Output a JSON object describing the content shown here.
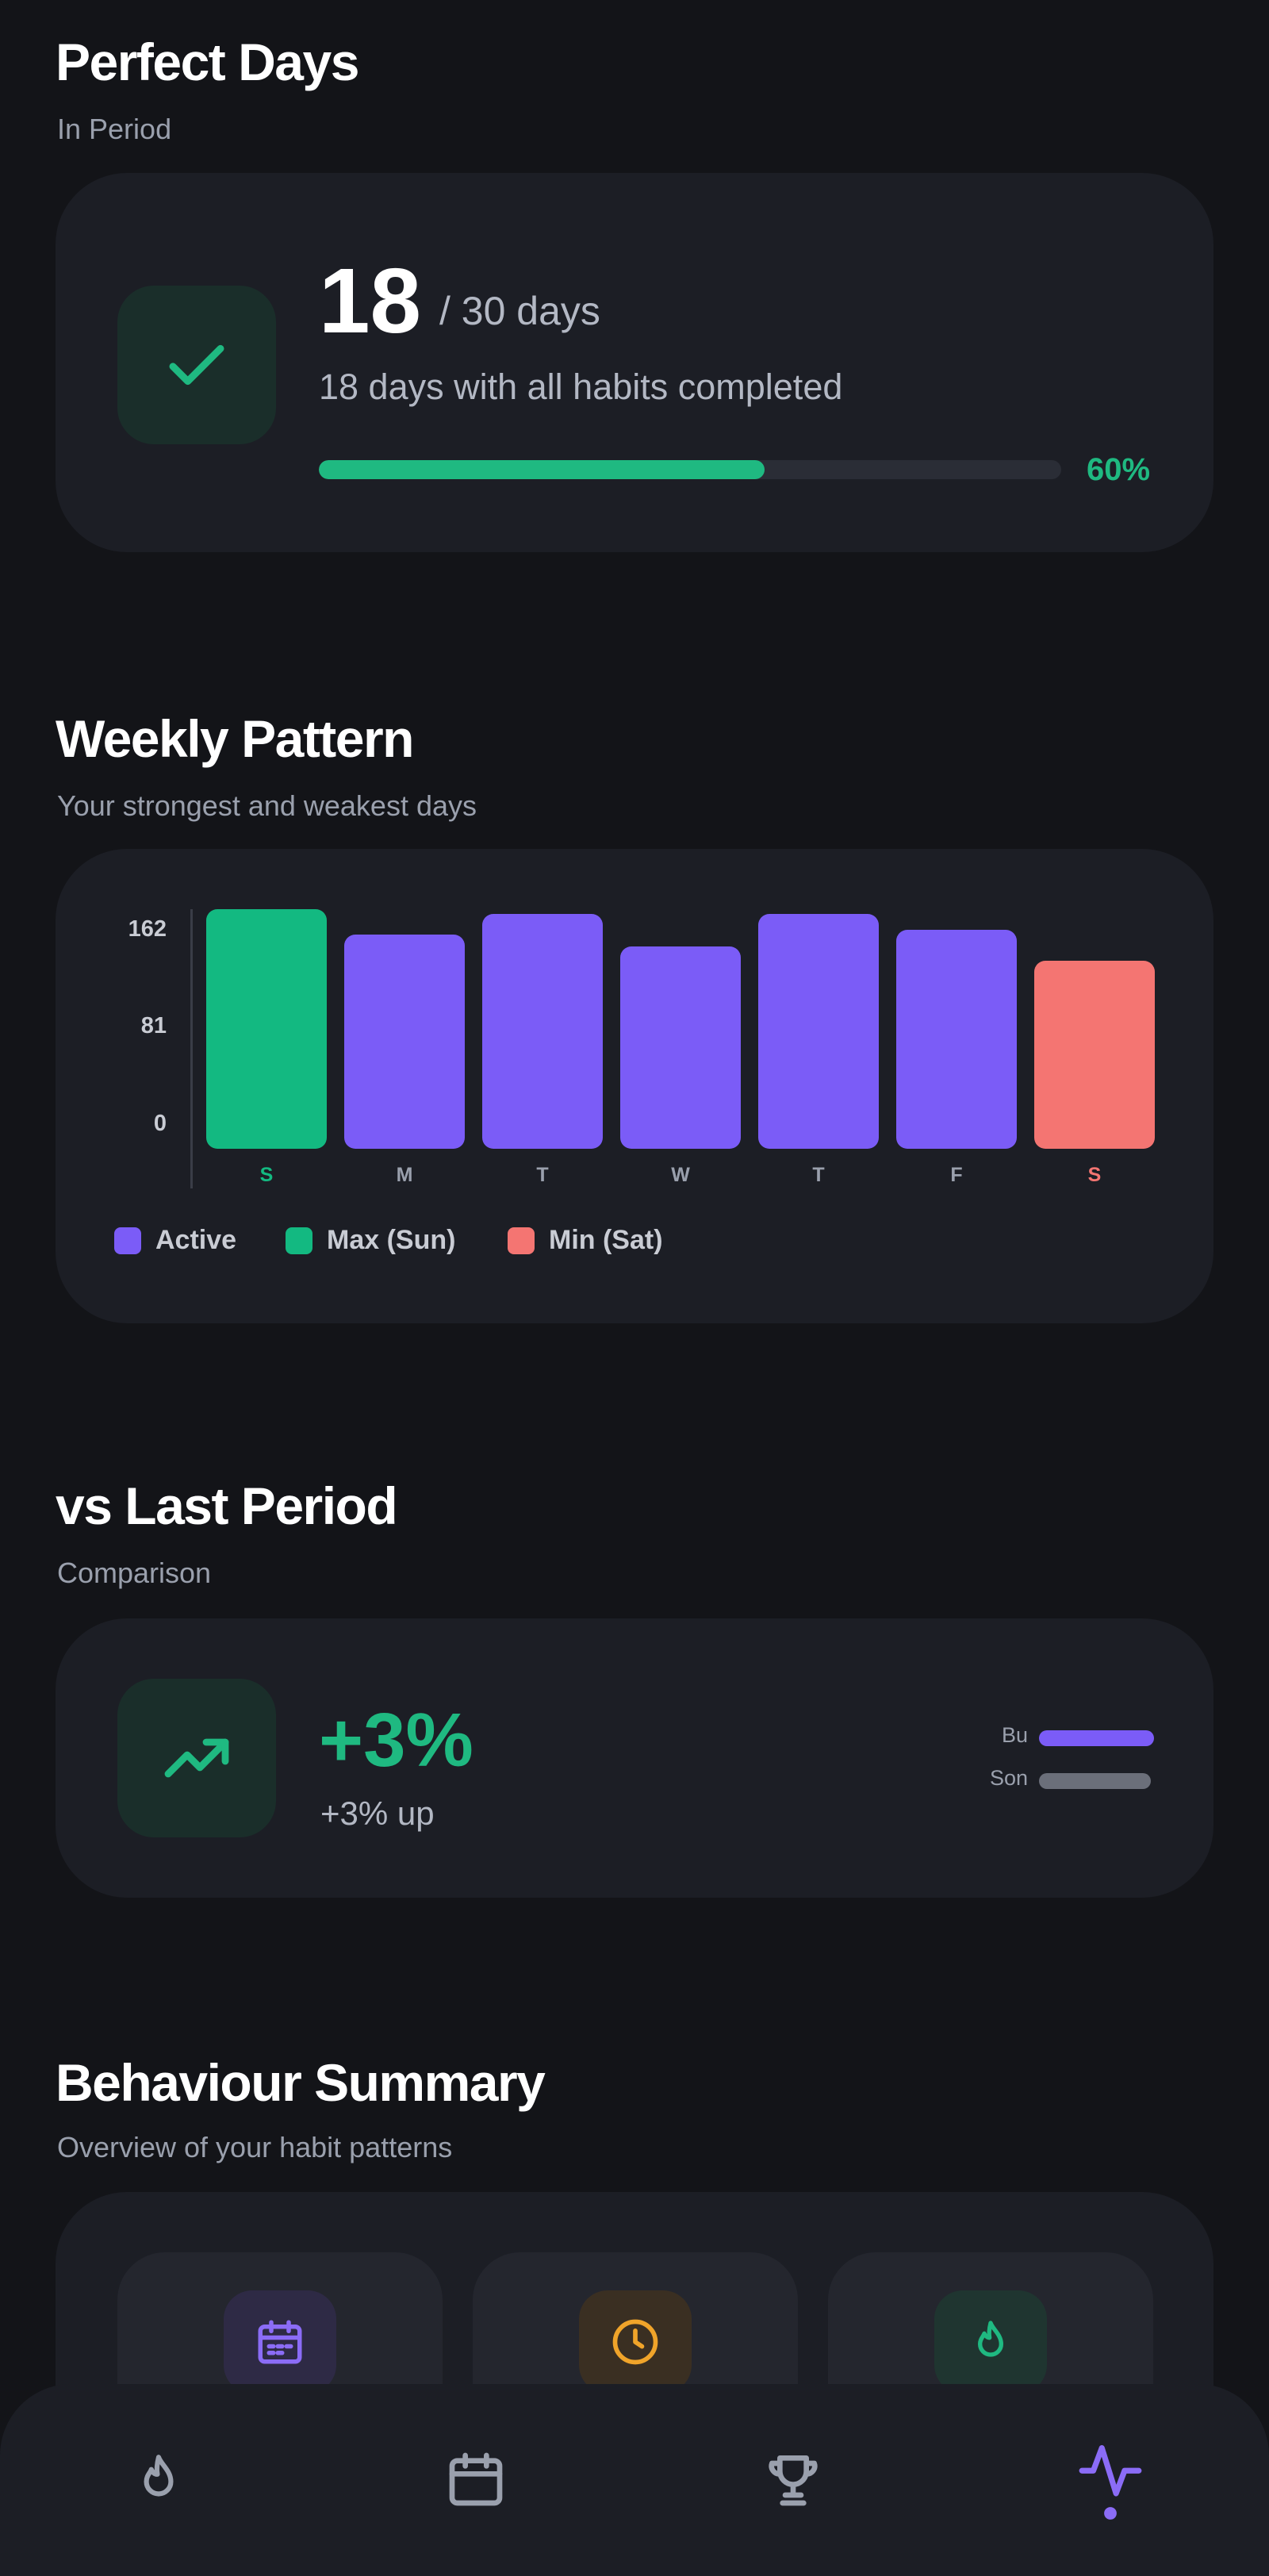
{
  "perfect_days": {
    "title": "Perfect Days",
    "subtitle": "In Period",
    "icon": "check-icon",
    "count": "18",
    "total": "/ 30 days",
    "description": "18 days with all habits completed",
    "progress_fraction": 0.6,
    "percent_label": "60%"
  },
  "weekly_pattern": {
    "title": "Weekly Pattern",
    "subtitle": "Your strongest and weakest days",
    "legend": [
      {
        "label": "Active",
        "color": "#7b5cf7"
      },
      {
        "label": "Max (Sun)",
        "color": "#13b981"
      },
      {
        "label": "Min (Sat)",
        "color": "#f47572"
      }
    ]
  },
  "chart_data": {
    "type": "bar",
    "categories": [
      "S",
      "M",
      "T",
      "W",
      "T",
      "F",
      "S"
    ],
    "values": [
      162,
      145,
      159,
      137,
      159,
      148,
      127
    ],
    "bar_colors": [
      "#13b981",
      "#7b5cf7",
      "#7b5cf7",
      "#7b5cf7",
      "#7b5cf7",
      "#7b5cf7",
      "#f47572"
    ],
    "label_colors": [
      "#13b981",
      "#9aa0ad",
      "#9aa0ad",
      "#9aa0ad",
      "#9aa0ad",
      "#9aa0ad",
      "#f47572"
    ],
    "yticks": [
      "162",
      "81",
      "0"
    ],
    "ylim": [
      0,
      162
    ],
    "title": "",
    "xlabel": "",
    "ylabel": "",
    "grid": false,
    "legend_position": "bottom-left"
  },
  "comparison": {
    "title": "vs Last Period",
    "subtitle": "Comparison",
    "icon": "trending-up-icon",
    "delta": "+3%",
    "delta_sub": "+3% up",
    "bars": [
      {
        "label": "Bu",
        "value": 1.0,
        "color": "#7b5cf7"
      },
      {
        "label": "Son",
        "value": 0.97,
        "color": "#6b6f7a"
      }
    ]
  },
  "behaviour": {
    "title": "Behaviour Summary",
    "subtitle": "Overview of your habit patterns",
    "tiles": [
      {
        "icon": "calendar-icon",
        "color": "#8b6cf6",
        "bg": "#2e2a45"
      },
      {
        "icon": "clock-icon",
        "color": "#f0a42a",
        "bg": "#3a2f22"
      },
      {
        "icon": "flame-icon",
        "color": "#1fb981",
        "bg": "#1f3530"
      }
    ]
  },
  "nav": {
    "items": [
      {
        "icon": "flame-icon",
        "active": false
      },
      {
        "icon": "calendar-icon",
        "active": false
      },
      {
        "icon": "trophy-icon",
        "active": false
      },
      {
        "icon": "activity-icon",
        "active": true
      }
    ],
    "active_color": "#8b6cf6",
    "inactive_color": "#9aa0ad"
  }
}
